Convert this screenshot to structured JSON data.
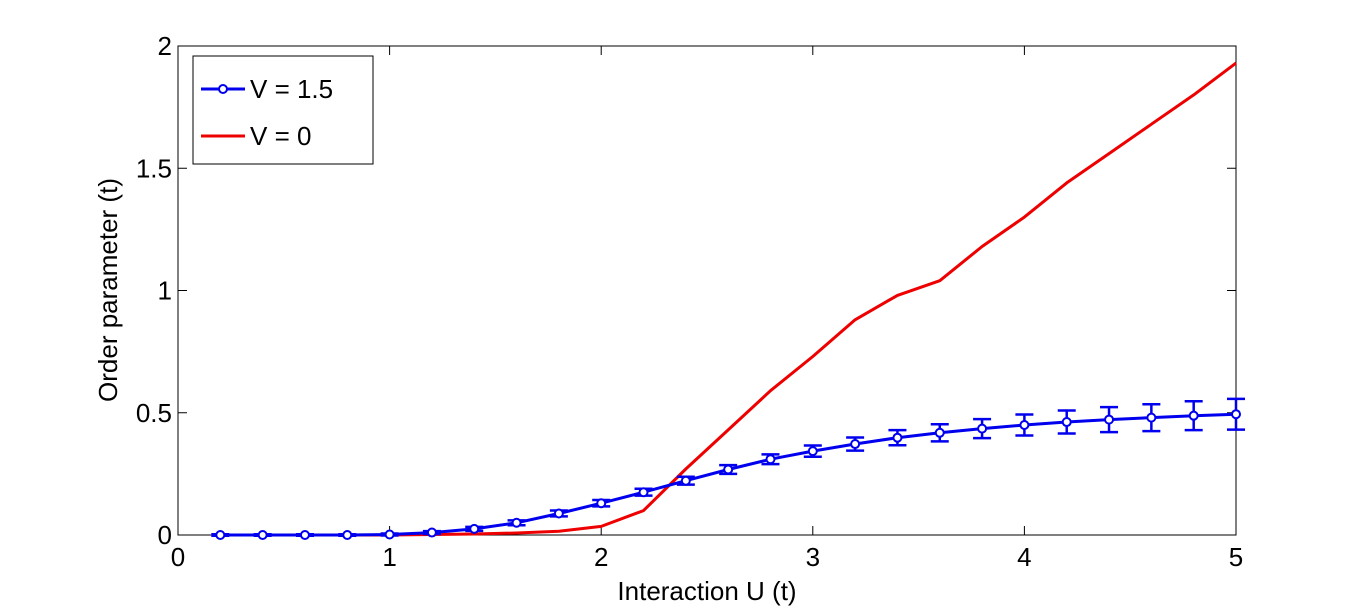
{
  "chart_data": {
    "type": "line",
    "title": "",
    "xlabel": "Interaction U (t)",
    "ylabel": "Order parameter (t)",
    "xlim": [
      0,
      5
    ],
    "ylim": [
      0,
      2
    ],
    "xticks": [
      0,
      1,
      2,
      3,
      4,
      5
    ],
    "xtick_labels": [
      "0",
      "1",
      "2",
      "3",
      "4",
      "5"
    ],
    "yticks": [
      0,
      0.5,
      1,
      1.5,
      2
    ],
    "ytick_labels": [
      "0",
      "0.5",
      "1",
      "1.5",
      "2"
    ],
    "grid": false,
    "legend_position": "top-left",
    "series": [
      {
        "name": "V = 1.5",
        "color": "#0000ee",
        "marker": "circle",
        "error_bars": true,
        "x": [
          0.2,
          0.4,
          0.6,
          0.8,
          1.0,
          1.2,
          1.4,
          1.6,
          1.8,
          2.0,
          2.2,
          2.4,
          2.6,
          2.8,
          3.0,
          3.2,
          3.4,
          3.6,
          3.8,
          4.0,
          4.2,
          4.4,
          4.6,
          4.8,
          5.0
        ],
        "y": [
          0.0,
          0.0,
          0.0,
          0.0,
          0.002,
          0.01,
          0.025,
          0.05,
          0.088,
          0.13,
          0.175,
          0.222,
          0.268,
          0.31,
          0.343,
          0.372,
          0.398,
          0.418,
          0.435,
          0.45,
          0.462,
          0.472,
          0.48,
          0.488,
          0.494
        ],
        "error": [
          0.003,
          0.003,
          0.003,
          0.003,
          0.004,
          0.006,
          0.008,
          0.01,
          0.012,
          0.013,
          0.014,
          0.016,
          0.018,
          0.02,
          0.023,
          0.027,
          0.031,
          0.035,
          0.039,
          0.043,
          0.047,
          0.051,
          0.055,
          0.059,
          0.063
        ]
      },
      {
        "name": "V = 0",
        "color": "#ee0000",
        "marker": "none",
        "error_bars": false,
        "x": [
          0.2,
          0.4,
          0.6,
          0.8,
          1.0,
          1.2,
          1.4,
          1.6,
          1.8,
          2.0,
          2.2,
          2.4,
          2.6,
          2.8,
          3.0,
          3.2,
          3.4,
          3.6,
          3.8,
          4.0,
          4.2,
          4.4,
          4.6,
          4.8,
          5.0
        ],
        "y": [
          0.0,
          0.0,
          0.0,
          0.0,
          0.0,
          0.002,
          0.004,
          0.008,
          0.015,
          0.035,
          0.1,
          0.27,
          0.43,
          0.59,
          0.73,
          0.88,
          0.98,
          1.04,
          1.18,
          1.3,
          1.44,
          1.56,
          1.68,
          1.8,
          1.93
        ]
      }
    ]
  }
}
